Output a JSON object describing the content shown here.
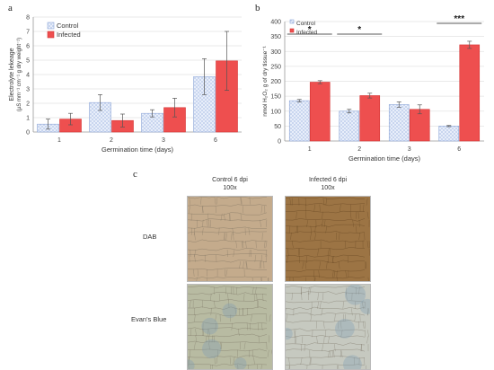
{
  "panels": {
    "a": "a",
    "b": "b",
    "c": "c"
  },
  "colors": {
    "control_fill": "#c9d6ef",
    "control_stroke": "#8ea7d8",
    "infected_fill": "#ee4f4f",
    "infected_stroke": "#d53535",
    "error_bar": "#555555",
    "axis": "#999999"
  },
  "chart_data": [
    {
      "type": "bar",
      "panel": "a",
      "categories": [
        "1",
        "2",
        "3",
        "6"
      ],
      "xlabel": "Germination time (days)",
      "ylabel_line1": "Electrolyte lekeage",
      "ylabel_line2": "(µS mm⁻¹ cm⁻¹ g dry weight⁻¹)",
      "ylim": [
        0,
        8
      ],
      "yticks": [
        "0",
        "1",
        "2",
        "3",
        "4",
        "5",
        "6",
        "7",
        "8"
      ],
      "grid": true,
      "legend_position": "top-left",
      "series": [
        {
          "name": "Control",
          "values": [
            0.55,
            2.05,
            1.3,
            3.85
          ],
          "errors": [
            0.35,
            0.55,
            0.25,
            1.25
          ]
        },
        {
          "name": "Infected",
          "values": [
            0.9,
            0.8,
            1.7,
            4.95
          ],
          "errors": [
            0.4,
            0.45,
            0.65,
            2.05
          ]
        }
      ]
    },
    {
      "type": "bar",
      "panel": "b",
      "categories": [
        "1",
        "2",
        "3",
        "6"
      ],
      "xlabel": "Germination time (days)",
      "ylabel": "nmol H₂O₂ g of dry tissue⁻¹",
      "ylim": [
        0,
        400
      ],
      "yticks": [
        "0",
        "50",
        "100",
        "150",
        "200",
        "250",
        "300",
        "350",
        "400"
      ],
      "grid": true,
      "legend_position": "top-left",
      "series": [
        {
          "name": "Control",
          "values": [
            135,
            100,
            122,
            50
          ],
          "errors": [
            4,
            6,
            9,
            2
          ]
        },
        {
          "name": "Infected",
          "values": [
            197,
            152,
            106,
            322
          ],
          "errors": [
            5,
            8,
            15,
            12
          ]
        }
      ],
      "significance": [
        {
          "category": "1",
          "label": "*"
        },
        {
          "category": "2",
          "label": "*"
        },
        {
          "category": "6",
          "label": "***"
        }
      ]
    }
  ],
  "micrographs": {
    "columns": [
      {
        "line1": "Control 6 dpi",
        "line2": "100x"
      },
      {
        "line1": "Infected 6 dpi",
        "line2": "100x"
      }
    ],
    "rows": [
      {
        "label": "DAB"
      },
      {
        "label": "Evan's Blue"
      }
    ],
    "tints": {
      "dab_control": "#c4ab8c",
      "dab_infected": "#9c7444",
      "evans_control": "#b8bba2",
      "evans_infected": "#c6c9c0"
    }
  }
}
